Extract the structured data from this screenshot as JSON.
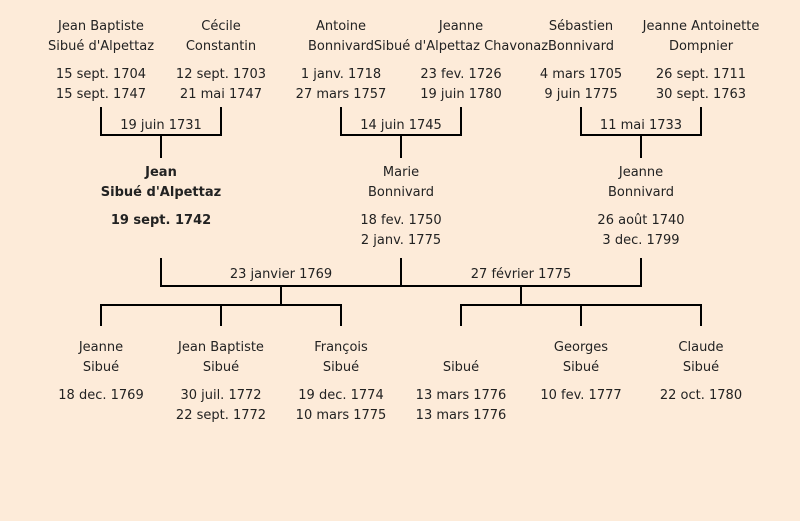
{
  "persons": {
    "gp1": {
      "name1": "Jean Baptiste",
      "name2": "Sibué d'Alpettaz",
      "birth": "15 sept. 1704",
      "death": "15 sept. 1747"
    },
    "gp2": {
      "name1": "Cécile",
      "name2": "Constantin",
      "birth": "12 sept. 1703",
      "death": "21 mai 1747"
    },
    "gp3": {
      "name1": "Antoine",
      "name2": "Bonnivard",
      "birth": "1 janv. 1718",
      "death": "27 mars 1757"
    },
    "gp4": {
      "name1": "Jeanne",
      "name2": "Sibué d'Alpettaz Chavonaz",
      "birth": "23 fev. 1726",
      "death": "19 juin 1780"
    },
    "gp5": {
      "name1": "Sébastien",
      "name2": "Bonnivard",
      "birth": "4 mars 1705",
      "death": "9 juin 1775"
    },
    "gp6": {
      "name1": "Jeanne Antoinette",
      "name2": "Dompnier",
      "birth": "26 sept. 1711",
      "death": "30 sept. 1763"
    },
    "p1": {
      "name1": "Jean",
      "name2": "Sibué d'Alpettaz",
      "birth": "19 sept. 1742",
      "death": ""
    },
    "p2": {
      "name1": "Marie",
      "name2": "Bonnivard",
      "birth": "18 fev. 1750",
      "death": "2 janv. 1775"
    },
    "p3": {
      "name1": "Jeanne",
      "name2": "Bonnivard",
      "birth": "26 août 1740",
      "death": "3 dec. 1799"
    },
    "c1": {
      "name1": "Jeanne",
      "name2": "Sibué",
      "birth": "18 dec. 1769",
      "death": ""
    },
    "c2": {
      "name1": "Jean Baptiste",
      "name2": "Sibué",
      "birth": "30 juil. 1772",
      "death": "22 sept. 1772"
    },
    "c3": {
      "name1": "François",
      "name2": "Sibué",
      "birth": "19 dec. 1774",
      "death": "10 mars 1775"
    },
    "c4": {
      "name1": "",
      "name2": "Sibué",
      "birth": "13 mars 1776",
      "death": "13 mars 1776"
    },
    "c5": {
      "name1": "Georges",
      "name2": "Sibué",
      "birth": "10 fev. 1777",
      "death": ""
    },
    "c6": {
      "name1": "Claude",
      "name2": "Sibué",
      "birth": "22 oct. 1780",
      "death": ""
    }
  },
  "marriages": {
    "m1": "19 juin 1731",
    "m2": "14 juin 1745",
    "m3": "11 mai 1733",
    "m4": "23 janvier 1769",
    "m5": "27 février 1775"
  },
  "colors": {
    "background": "#fdebd9",
    "line": "#000000",
    "text": "#222222"
  }
}
